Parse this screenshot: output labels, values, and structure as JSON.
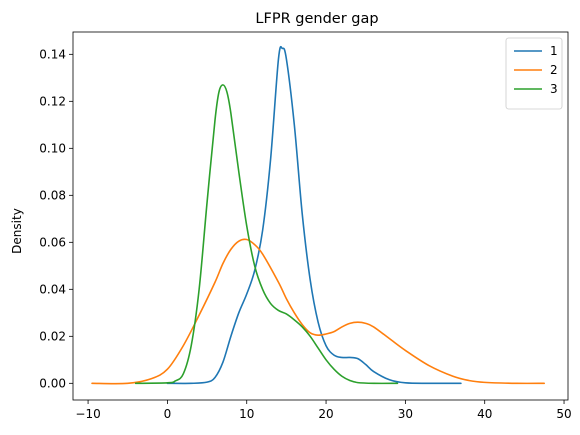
{
  "chart_data": {
    "type": "line",
    "title": "LFPR gender gap",
    "xlabel": "",
    "ylabel": "Density",
    "xlim": [
      -11.9,
      50.5
    ],
    "ylim": [
      -0.0071,
      0.1495
    ],
    "xticks": [
      -10,
      0,
      10,
      20,
      30,
      40,
      50
    ],
    "xtick_labels": [
      "−10",
      "0",
      "10",
      "20",
      "30",
      "40",
      "50"
    ],
    "yticks": [
      0.0,
      0.02,
      0.04,
      0.06,
      0.08,
      0.1,
      0.12,
      0.14
    ],
    "ytick_labels": [
      "0.00",
      "0.02",
      "0.04",
      "0.06",
      "0.08",
      "0.10",
      "0.12",
      "0.14"
    ],
    "legend_position": "top-right",
    "grid": false,
    "series": [
      {
        "name": "1",
        "color": "#1f77b4",
        "x": [
          0,
          3,
          5,
          6,
          7,
          8,
          9,
          10,
          11,
          12,
          13,
          14,
          14.5,
          15,
          16,
          17,
          18,
          19,
          20,
          21,
          22,
          23,
          24,
          25,
          26,
          28,
          30,
          33,
          37
        ],
        "y": [
          0.0,
          0.0,
          0.0005,
          0.0025,
          0.009,
          0.02,
          0.03,
          0.038,
          0.048,
          0.065,
          0.095,
          0.138,
          0.1425,
          0.138,
          0.11,
          0.072,
          0.044,
          0.026,
          0.016,
          0.012,
          0.011,
          0.011,
          0.0105,
          0.008,
          0.005,
          0.0015,
          0.0002,
          0.0,
          0.0
        ]
      },
      {
        "name": "2",
        "color": "#ff7f0e",
        "x": [
          -9.5,
          -5,
          -2,
          0,
          2,
          4,
          6,
          7,
          8,
          9,
          10,
          11,
          12,
          14,
          15,
          16,
          17,
          18,
          19,
          20,
          21,
          22,
          23,
          24,
          25,
          26,
          28,
          30,
          33,
          36,
          38,
          40,
          44,
          47.5
        ],
        "y": [
          0.0,
          0.0,
          0.002,
          0.006,
          0.016,
          0.029,
          0.043,
          0.051,
          0.057,
          0.0605,
          0.0612,
          0.059,
          0.055,
          0.043,
          0.036,
          0.03,
          0.025,
          0.0215,
          0.0205,
          0.021,
          0.022,
          0.024,
          0.0255,
          0.026,
          0.0255,
          0.024,
          0.019,
          0.014,
          0.0075,
          0.003,
          0.0012,
          0.0004,
          0.0,
          0.0
        ]
      },
      {
        "name": "3",
        "color": "#2ca02c",
        "x": [
          -4,
          0,
          1,
          2,
          3,
          4,
          5,
          6,
          6.5,
          7,
          7.5,
          8,
          9,
          10,
          11,
          12,
          13,
          14,
          15,
          16,
          17,
          18,
          19,
          20,
          21,
          22,
          23,
          24,
          26,
          29
        ],
        "y": [
          0.0,
          0.0002,
          0.001,
          0.004,
          0.016,
          0.04,
          0.077,
          0.112,
          0.124,
          0.127,
          0.124,
          0.115,
          0.09,
          0.067,
          0.05,
          0.04,
          0.034,
          0.031,
          0.0295,
          0.027,
          0.024,
          0.02,
          0.015,
          0.01,
          0.006,
          0.003,
          0.0012,
          0.0003,
          0.0,
          0.0
        ]
      }
    ]
  }
}
